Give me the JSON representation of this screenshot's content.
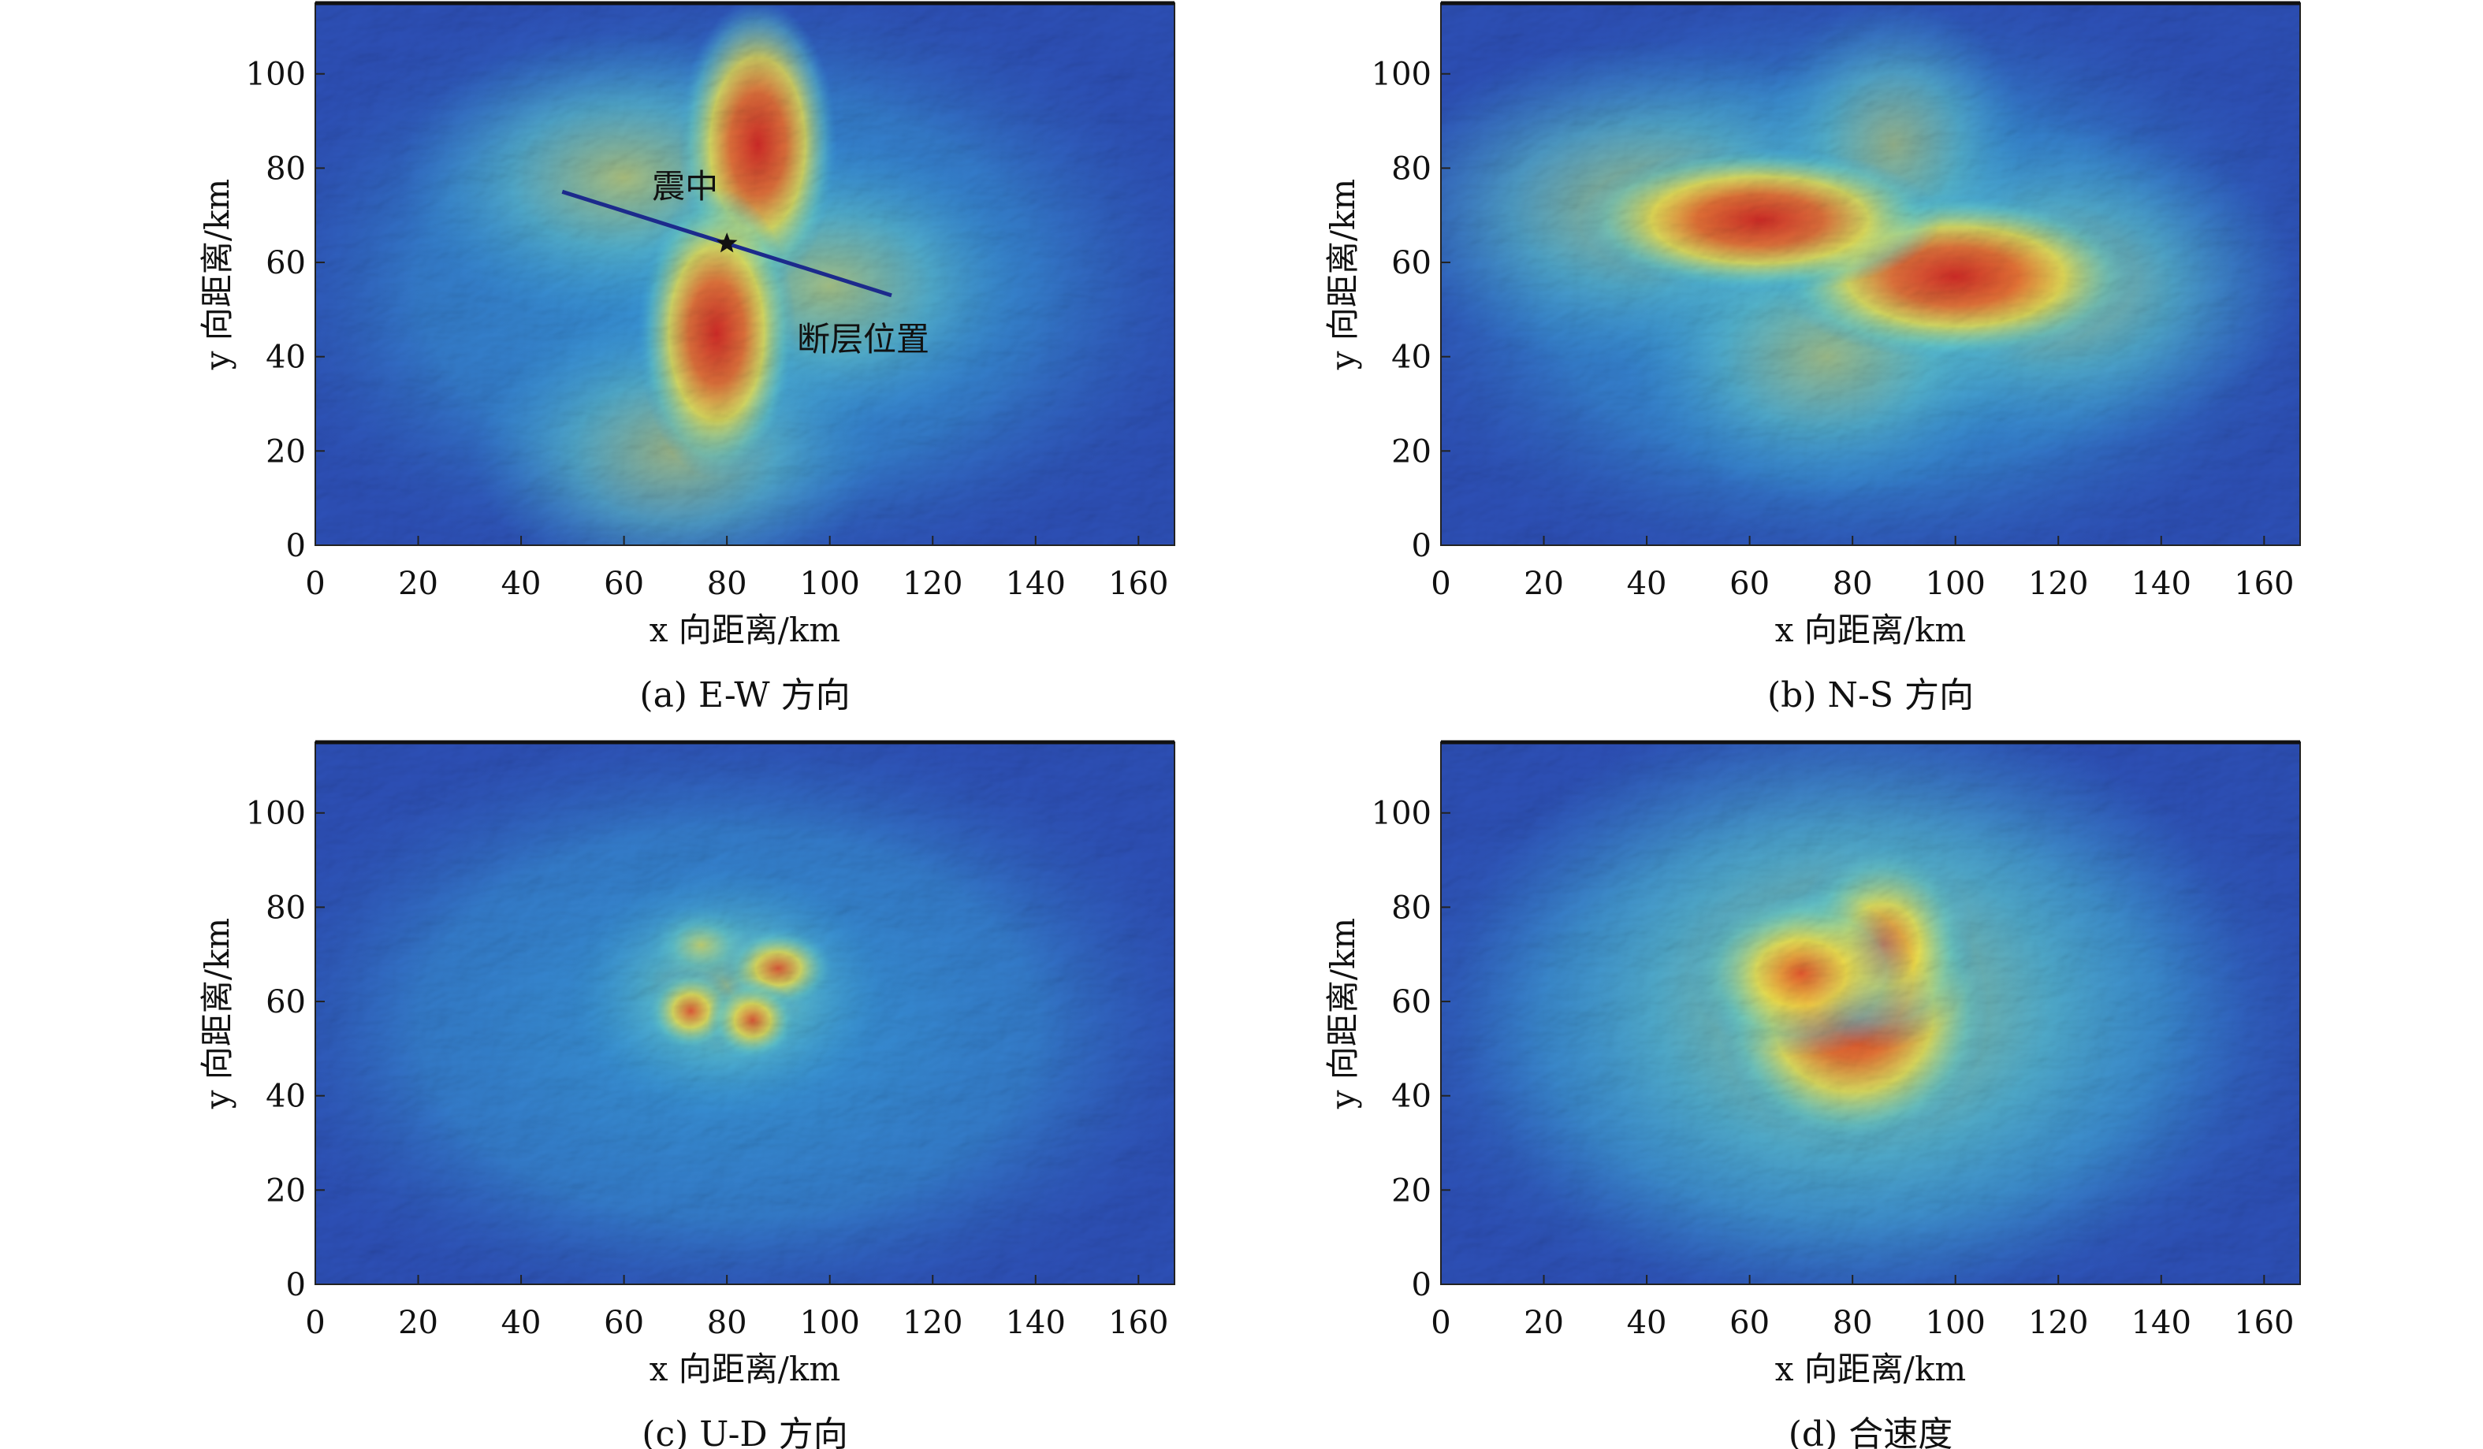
{
  "colors": {
    "low": "#2d50b8",
    "mid_low": "#3aa6de",
    "mid": "#6ad0c8",
    "mid_high": "#f3e24a",
    "high": "#d8241e",
    "fault_line": "#1c2a8c"
  },
  "chart_data": [
    {
      "type": "heatmap",
      "caption": "(a) E-W 方向",
      "xlabel": "x 向距离/km",
      "ylabel": "y 向距离/km",
      "xlim": [
        0,
        167
      ],
      "ylim": [
        0,
        115
      ],
      "xticks": [
        0,
        20,
        40,
        60,
        80,
        100,
        120,
        140,
        160
      ],
      "yticks": [
        0,
        20,
        40,
        60,
        80,
        100
      ],
      "hotspots": [
        {
          "x": 86,
          "y": 85,
          "level": 1.0,
          "rx": 7,
          "ry": 14
        },
        {
          "x": 78,
          "y": 45,
          "level": 1.0,
          "rx": 7,
          "ry": 14
        },
        {
          "x": 60,
          "y": 78,
          "level": 0.55,
          "rx": 20,
          "ry": 14
        },
        {
          "x": 100,
          "y": 55,
          "level": 0.5,
          "rx": 18,
          "ry": 14
        },
        {
          "x": 70,
          "y": 20,
          "level": 0.45,
          "rx": 18,
          "ry": 14
        }
      ],
      "epicenter": {
        "x": 80,
        "y": 64,
        "label": "震中"
      },
      "fault": {
        "x1": 48,
        "y1": 75,
        "x2": 112,
        "y2": 53,
        "label": "断层位置"
      }
    },
    {
      "type": "heatmap",
      "caption": "(b) N-S 方向",
      "xlabel": "x 向距离/km",
      "ylabel": "y 向距离/km",
      "xlim": [
        0,
        167
      ],
      "ylim": [
        0,
        115
      ],
      "xticks": [
        0,
        20,
        40,
        60,
        80,
        100,
        120,
        140,
        160
      ],
      "yticks": [
        0,
        20,
        40,
        60,
        80,
        100
      ],
      "hotspots": [
        {
          "x": 62,
          "y": 69,
          "level": 1.0,
          "rx": 16,
          "ry": 7
        },
        {
          "x": 100,
          "y": 57,
          "level": 1.0,
          "rx": 16,
          "ry": 8
        },
        {
          "x": 40,
          "y": 72,
          "level": 0.5,
          "rx": 24,
          "ry": 16
        },
        {
          "x": 118,
          "y": 55,
          "level": 0.5,
          "rx": 22,
          "ry": 16
        },
        {
          "x": 75,
          "y": 40,
          "level": 0.45,
          "rx": 18,
          "ry": 14
        },
        {
          "x": 88,
          "y": 85,
          "level": 0.4,
          "rx": 12,
          "ry": 14
        }
      ]
    },
    {
      "type": "heatmap",
      "caption": "(c) U-D 方向",
      "xlabel": "x 向距离/km",
      "ylabel": "y 向距离/km",
      "xlim": [
        0,
        167
      ],
      "ylim": [
        0,
        115
      ],
      "xticks": [
        0,
        20,
        40,
        60,
        80,
        100,
        120,
        140,
        160
      ],
      "yticks": [
        0,
        20,
        40,
        60,
        80,
        100
      ],
      "hotspots": [
        {
          "x": 73,
          "y": 58,
          "level": 0.85,
          "rx": 4,
          "ry": 4
        },
        {
          "x": 85,
          "y": 56,
          "level": 0.9,
          "rx": 4,
          "ry": 4
        },
        {
          "x": 90,
          "y": 67,
          "level": 0.75,
          "rx": 5,
          "ry": 4
        },
        {
          "x": 75,
          "y": 72,
          "level": 0.6,
          "rx": 5,
          "ry": 4
        },
        {
          "x": 80,
          "y": 62,
          "level": 0.4,
          "rx": 14,
          "ry": 12
        }
      ]
    },
    {
      "type": "heatmap",
      "caption": "(d) 合速度",
      "xlabel": "x 向距离/km",
      "ylabel": "y 向距离/km",
      "xlim": [
        0,
        167
      ],
      "ylim": [
        0,
        115
      ],
      "xticks": [
        0,
        20,
        40,
        60,
        80,
        100,
        120,
        140,
        160
      ],
      "yticks": [
        0,
        20,
        40,
        60,
        80,
        100
      ],
      "hotspots": [
        {
          "x": 80,
          "y": 58,
          "level": 1.0,
          "rx": 12,
          "ry": 13
        },
        {
          "x": 86,
          "y": 72,
          "level": 0.85,
          "rx": 8,
          "ry": 10
        },
        {
          "x": 70,
          "y": 66,
          "level": 0.75,
          "rx": 10,
          "ry": 8
        },
        {
          "x": 80,
          "y": 60,
          "level": 0.55,
          "rx": 35,
          "ry": 30
        }
      ]
    }
  ]
}
